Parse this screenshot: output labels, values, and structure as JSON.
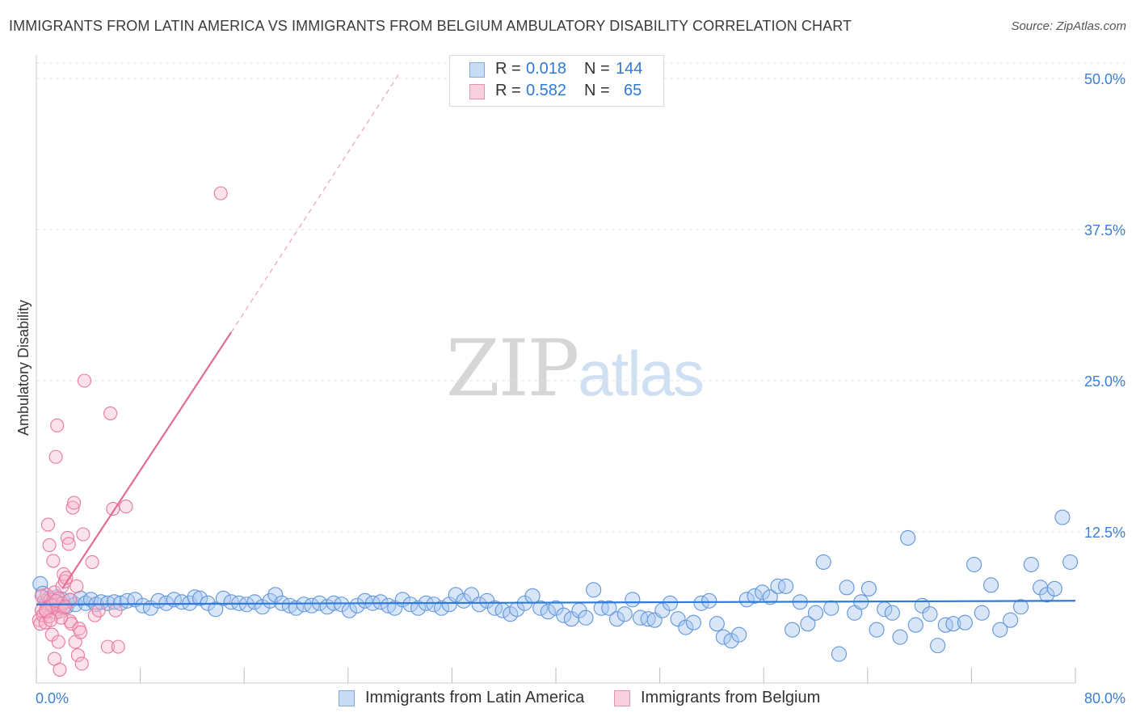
{
  "title": "IMMIGRANTS FROM LATIN AMERICA VS IMMIGRANTS FROM BELGIUM AMBULATORY DISABILITY CORRELATION CHART",
  "source": "Source: ZipAtlas.com",
  "watermark": {
    "zip": "ZIP",
    "atlas": "atlas"
  },
  "legend": {
    "rows": [
      {
        "r_label": "R =",
        "r_value": "0.018",
        "n_label": "N =",
        "n_value": "144",
        "color": "#9fc2ee"
      },
      {
        "r_label": "R =",
        "r_value": "0.582",
        "n_label": "N =",
        "n_value": "65",
        "color": "#f4a6c1"
      }
    ]
  },
  "bottom_legend": [
    {
      "label": "Immigrants from Latin America",
      "color": "#9fc2ee"
    },
    {
      "label": "Immigrants from Belgium",
      "color": "#f4a6c1"
    }
  ],
  "colors": {
    "blue_fill": "#a9c8f0",
    "blue_stroke": "#5f95d9",
    "blue_line": "#2f7ad9",
    "pink_fill": "#f6b6cc",
    "pink_stroke": "#e8789f",
    "pink_line": "#e36c97",
    "axis_label": "#3a7fd6",
    "grid": "#e3e3e3"
  },
  "chart_data": {
    "type": "scatter",
    "title": "IMMIGRANTS FROM LATIN AMERICA VS IMMIGRANTS FROM BELGIUM AMBULATORY DISABILITY CORRELATION CHART",
    "xlabel": "",
    "ylabel": "Ambulatory Disability",
    "xlim": [
      0,
      80
    ],
    "ylim": [
      0,
      52
    ],
    "x_tick_labels": [
      "0.0%",
      "80.0%"
    ],
    "y_ticks": [
      12.5,
      25.0,
      37.5,
      50.0
    ],
    "y_tick_labels": [
      "12.5%",
      "25.0%",
      "37.5%",
      "50.0%"
    ],
    "grid": true,
    "series": [
      {
        "name": "Immigrants from Latin America",
        "r": 0.018,
        "n": 144,
        "trend": {
          "x": [
            0,
            80
          ],
          "y": [
            6.5,
            6.8
          ]
        },
        "points": [
          [
            0.3,
            8.2
          ],
          [
            0.5,
            7.4
          ],
          [
            0.8,
            6.6
          ],
          [
            1.0,
            7.0
          ],
          [
            1.3,
            6.4
          ],
          [
            1.6,
            7.1
          ],
          [
            2.0,
            6.9
          ],
          [
            2.3,
            6.3
          ],
          [
            2.6,
            6.8
          ],
          [
            3.0,
            6.5
          ],
          [
            3.4,
            7.0
          ],
          [
            3.8,
            6.6
          ],
          [
            4.2,
            6.9
          ],
          [
            4.6,
            6.5
          ],
          [
            5.0,
            6.7
          ],
          [
            5.5,
            6.6
          ],
          [
            6.0,
            6.7
          ],
          [
            6.5,
            6.6
          ],
          [
            7.0,
            6.8
          ],
          [
            7.6,
            6.9
          ],
          [
            8.2,
            6.4
          ],
          [
            8.8,
            6.2
          ],
          [
            9.4,
            6.8
          ],
          [
            10.0,
            6.6
          ],
          [
            10.6,
            6.9
          ],
          [
            11.2,
            6.7
          ],
          [
            11.8,
            6.6
          ],
          [
            12.2,
            7.1
          ],
          [
            12.6,
            7.0
          ],
          [
            13.2,
            6.6
          ],
          [
            13.8,
            6.1
          ],
          [
            14.4,
            7.0
          ],
          [
            15.0,
            6.7
          ],
          [
            15.6,
            6.6
          ],
          [
            16.2,
            6.5
          ],
          [
            16.8,
            6.7
          ],
          [
            17.4,
            6.3
          ],
          [
            18.0,
            6.8
          ],
          [
            18.4,
            7.3
          ],
          [
            18.9,
            6.6
          ],
          [
            19.5,
            6.4
          ],
          [
            20.0,
            6.2
          ],
          [
            20.6,
            6.5
          ],
          [
            21.2,
            6.4
          ],
          [
            21.8,
            6.6
          ],
          [
            22.4,
            6.3
          ],
          [
            22.9,
            6.6
          ],
          [
            23.5,
            6.5
          ],
          [
            24.1,
            6.0
          ],
          [
            24.7,
            6.4
          ],
          [
            25.3,
            6.8
          ],
          [
            25.9,
            6.6
          ],
          [
            26.5,
            6.7
          ],
          [
            27.1,
            6.4
          ],
          [
            27.6,
            6.2
          ],
          [
            28.2,
            6.9
          ],
          [
            28.8,
            6.5
          ],
          [
            29.4,
            6.2
          ],
          [
            30.0,
            6.6
          ],
          [
            30.6,
            6.5
          ],
          [
            31.2,
            6.2
          ],
          [
            31.8,
            6.5
          ],
          [
            32.3,
            7.3
          ],
          [
            32.9,
            6.8
          ],
          [
            33.5,
            7.3
          ],
          [
            34.1,
            6.5
          ],
          [
            34.7,
            6.8
          ],
          [
            35.3,
            6.2
          ],
          [
            35.9,
            6.0
          ],
          [
            36.5,
            5.7
          ],
          [
            37.0,
            6.1
          ],
          [
            37.6,
            6.6
          ],
          [
            38.2,
            7.2
          ],
          [
            38.8,
            6.2
          ],
          [
            39.4,
            5.9
          ],
          [
            40.0,
            6.2
          ],
          [
            40.6,
            5.6
          ],
          [
            41.2,
            5.3
          ],
          [
            41.8,
            6.0
          ],
          [
            42.3,
            5.4
          ],
          [
            42.9,
            7.7
          ],
          [
            43.5,
            6.2
          ],
          [
            44.1,
            6.2
          ],
          [
            44.7,
            5.3
          ],
          [
            45.3,
            5.7
          ],
          [
            45.9,
            6.9
          ],
          [
            46.5,
            5.4
          ],
          [
            47.1,
            5.3
          ],
          [
            47.6,
            5.2
          ],
          [
            48.2,
            6.0
          ],
          [
            48.8,
            6.6
          ],
          [
            49.4,
            5.3
          ],
          [
            50.0,
            4.6
          ],
          [
            50.6,
            5.0
          ],
          [
            51.2,
            6.6
          ],
          [
            51.8,
            6.8
          ],
          [
            52.4,
            4.9
          ],
          [
            52.9,
            3.8
          ],
          [
            53.5,
            3.5
          ],
          [
            54.1,
            4.0
          ],
          [
            54.7,
            6.9
          ],
          [
            55.3,
            7.2
          ],
          [
            55.9,
            7.5
          ],
          [
            56.5,
            7.1
          ],
          [
            57.1,
            8.0
          ],
          [
            57.7,
            8.0
          ],
          [
            58.2,
            4.4
          ],
          [
            58.8,
            6.7
          ],
          [
            59.4,
            4.9
          ],
          [
            60.0,
            5.8
          ],
          [
            60.6,
            10.0
          ],
          [
            61.2,
            6.2
          ],
          [
            61.8,
            2.4
          ],
          [
            62.4,
            7.9
          ],
          [
            63.0,
            5.8
          ],
          [
            63.5,
            6.7
          ],
          [
            64.1,
            7.8
          ],
          [
            64.7,
            4.4
          ],
          [
            65.3,
            6.1
          ],
          [
            65.9,
            5.8
          ],
          [
            66.5,
            3.8
          ],
          [
            67.1,
            12.0
          ],
          [
            67.7,
            4.8
          ],
          [
            68.2,
            6.4
          ],
          [
            68.8,
            5.7
          ],
          [
            69.4,
            3.1
          ],
          [
            70.0,
            4.8
          ],
          [
            70.6,
            4.9
          ],
          [
            71.5,
            5.0
          ],
          [
            72.2,
            9.8
          ],
          [
            72.8,
            5.8
          ],
          [
            73.5,
            8.1
          ],
          [
            74.2,
            4.4
          ],
          [
            75.0,
            5.2
          ],
          [
            75.8,
            6.3
          ],
          [
            76.6,
            9.8
          ],
          [
            77.3,
            7.9
          ],
          [
            77.8,
            7.3
          ],
          [
            78.4,
            7.8
          ],
          [
            79.0,
            13.7
          ],
          [
            79.6,
            10.0
          ]
        ]
      },
      {
        "name": "Immigrants from Belgium",
        "r": 0.582,
        "n": 65,
        "trend": {
          "x": [
            2.0,
            15.0
          ],
          "y": [
            7.8,
            29.0
          ]
        },
        "trend_extension": {
          "x": [
            15.0,
            28.0
          ],
          "y": [
            29.0,
            50.5
          ]
        },
        "points": [
          [
            0.2,
            5.2
          ],
          [
            0.3,
            4.9
          ],
          [
            0.4,
            6.0
          ],
          [
            0.5,
            5.6
          ],
          [
            0.6,
            6.8
          ],
          [
            0.7,
            5.0
          ],
          [
            0.8,
            7.3
          ],
          [
            0.9,
            6.2
          ],
          [
            1.0,
            5.5
          ],
          [
            1.1,
            6.9
          ],
          [
            1.2,
            4.0
          ],
          [
            1.3,
            6.5
          ],
          [
            1.4,
            7.5
          ],
          [
            1.5,
            5.8
          ],
          [
            1.6,
            6.1
          ],
          [
            1.7,
            7.0
          ],
          [
            1.8,
            5.9
          ],
          [
            1.9,
            6.3
          ],
          [
            2.0,
            6.6
          ],
          [
            2.1,
            6.2
          ],
          [
            0.9,
            13.1
          ],
          [
            1.0,
            11.4
          ],
          [
            1.3,
            10.1
          ],
          [
            1.5,
            18.7
          ],
          [
            1.6,
            21.3
          ],
          [
            1.4,
            2.0
          ],
          [
            1.7,
            3.4
          ],
          [
            1.8,
            1.1
          ],
          [
            2.0,
            8.0
          ],
          [
            2.1,
            9.0
          ],
          [
            2.2,
            8.4
          ],
          [
            2.3,
            8.7
          ],
          [
            2.4,
            12.0
          ],
          [
            2.5,
            11.5
          ],
          [
            2.6,
            5.1
          ],
          [
            2.7,
            4.9
          ],
          [
            2.8,
            14.5
          ],
          [
            2.9,
            14.9
          ],
          [
            3.0,
            3.4
          ],
          [
            3.1,
            8.0
          ],
          [
            3.2,
            2.3
          ],
          [
            3.3,
            4.5
          ],
          [
            3.4,
            4.2
          ],
          [
            3.5,
            1.6
          ],
          [
            3.6,
            12.3
          ],
          [
            3.7,
            25.0
          ],
          [
            4.3,
            10.0
          ],
          [
            4.5,
            5.6
          ],
          [
            4.8,
            6.0
          ],
          [
            5.5,
            3.0
          ],
          [
            5.7,
            22.3
          ],
          [
            5.9,
            14.4
          ],
          [
            6.1,
            6.0
          ],
          [
            6.3,
            3.0
          ],
          [
            6.9,
            14.6
          ],
          [
            14.2,
            40.5
          ],
          [
            0.8,
            5.9
          ],
          [
            1.2,
            6.4
          ],
          [
            1.9,
            5.4
          ],
          [
            2.6,
            6.9
          ],
          [
            0.4,
            7.2
          ],
          [
            0.7,
            6.0
          ],
          [
            1.1,
            5.2
          ],
          [
            1.5,
            6.8
          ],
          [
            2.2,
            6.3
          ]
        ]
      }
    ]
  }
}
